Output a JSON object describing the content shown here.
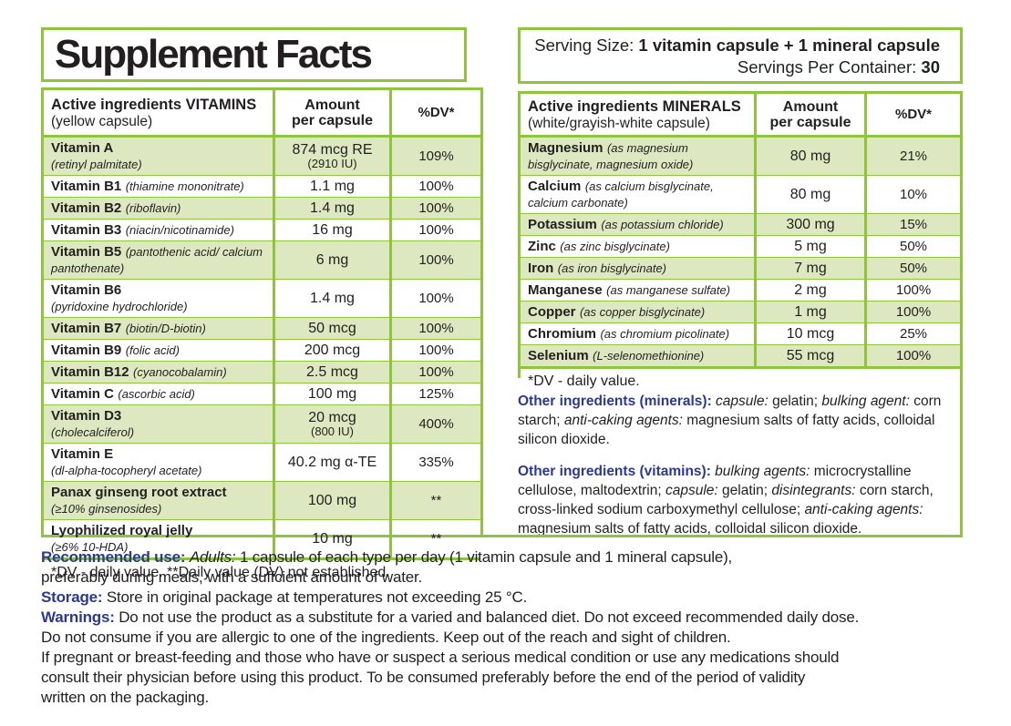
{
  "colors": {
    "border_green": "#8FC43F",
    "row_shade_green": "#DEE8C0",
    "heading_blue": "#2B3990",
    "text": "#221F1F"
  },
  "label": {
    "title": "Supplement Facts",
    "serving": {
      "line1": [
        {
          "t": "Serving Size: ",
          "s": "n"
        },
        {
          "t": "1 vitamin capsule + 1 mineral capsule",
          "s": "b"
        }
      ],
      "line2": [
        {
          "t": "Servings Per Container: ",
          "s": "n"
        },
        {
          "t": "30",
          "s": "b"
        }
      ]
    },
    "vitamins": {
      "header": {
        "title": "Active ingredients VITAMINS",
        "subtitle": "(yellow capsule)",
        "amount_line1": "Amount",
        "amount_line2": "per capsule",
        "dv": "%DV*"
      },
      "rows": [
        {
          "name": "Vitamin A",
          "chem": "(retinyl palmitate)",
          "br": true,
          "amount": "874 mcg RE",
          "amount2": "(2910 IU)",
          "dv": "109%"
        },
        {
          "name": "Vitamin B1",
          "chem": "(thiamine mononitrate)",
          "amount": "1.1 mg",
          "dv": "100%"
        },
        {
          "name": "Vitamin B2",
          "chem": "(riboflavin)",
          "amount": "1.4 mg",
          "dv": "100%"
        },
        {
          "name": "Vitamin B3",
          "chem": "(niacin/nicotinamide)",
          "amount": "16 mg",
          "dv": "100%"
        },
        {
          "name": "Vitamin B5",
          "chem": "(pantothenic acid/ calcium pantothenate)",
          "amount": "6 mg",
          "dv": "100%"
        },
        {
          "name": "Vitamin B6",
          "chem": "(pyridoxine hydrochloride)",
          "br": true,
          "amount": "1.4 mg",
          "dv": "100%"
        },
        {
          "name": "Vitamin B7",
          "chem": "(biotin/D-biotin)",
          "amount": "50 mcg",
          "dv": "100%"
        },
        {
          "name": "Vitamin B9",
          "chem": "(folic acid)",
          "amount": "200 mcg",
          "dv": "100%"
        },
        {
          "name": "Vitamin B12",
          "chem": "(cyanocobalamin)",
          "amount": "2.5 mcg",
          "dv": "100%"
        },
        {
          "name": "Vitamin C",
          "chem": "(ascorbic acid)",
          "amount": "100 mg",
          "dv": "125%"
        },
        {
          "name": "Vitamin D3",
          "chem": "(cholecalciferol)",
          "br": true,
          "amount": "20 mcg",
          "amount2": "(800 IU)",
          "dv": "400%"
        },
        {
          "name": "Vitamin E",
          "chem": "(dl-alpha-tocopheryl acetate)",
          "br": true,
          "amount": "40.2 mg α-TE",
          "dv": "335%"
        },
        {
          "name": "Panax ginseng root extract",
          "chem": "(≥10% ginsenosides)",
          "br": true,
          "amount": "100 mg",
          "dv": "**"
        },
        {
          "name": "Lyophilized royal jelly",
          "chem": "(≥6% 10-HDA)",
          "br": true,
          "amount": "10 mg",
          "dv": "**"
        }
      ],
      "footnote": "*DV - daily value.  **Daily value (DV) not established."
    },
    "minerals": {
      "header": {
        "title": "Active ingredients MINERALS",
        "subtitle": "(white/grayish-white capsule)",
        "amount_line1": "Amount",
        "amount_line2": "per capsule",
        "dv": "%DV*"
      },
      "rows": [
        {
          "name": "Magnesium",
          "chem": "(as magnesium bisglycinate, magnesium oxide)",
          "amount": "80 mg",
          "dv": "21%"
        },
        {
          "name": "Calcium",
          "chem": "(as calcium bisglycinate, calcium carbonate)",
          "amount": "80 mg",
          "dv": "10%"
        },
        {
          "name": "Potassium",
          "chem": "(as potassium chloride)",
          "amount": "300 mg",
          "dv": "15%"
        },
        {
          "name": "Zinc",
          "chem": "(as zinc bisglycinate)",
          "amount": "5 mg",
          "dv": "50%"
        },
        {
          "name": "Iron",
          "chem": "(as iron bisglycinate)",
          "amount": "7 mg",
          "dv": "50%"
        },
        {
          "name": "Manganese",
          "chem": "(as manganese sulfate)",
          "amount": "2 mg",
          "dv": "100%"
        },
        {
          "name": "Copper",
          "chem": "(as copper bisglycinate)",
          "amount": "1 mg",
          "dv": "100%"
        },
        {
          "name": "Chromium",
          "chem": "(as chromium picolinate)",
          "amount": "10 mcg",
          "dv": "25%"
        },
        {
          "name": "Selenium",
          "chem": "(L-selenomethionine)",
          "amount": "55 mcg",
          "dv": "100%"
        }
      ],
      "footnote": "*DV - daily value."
    },
    "other_ingredients_minerals": [
      {
        "t": "Other ingredients (minerals): ",
        "s": "bb"
      },
      {
        "t": "capsule: ",
        "s": "i"
      },
      {
        "t": "gelatin; ",
        "s": "n"
      },
      {
        "t": "bulking agent: ",
        "s": "i"
      },
      {
        "t": "corn starch; ",
        "s": "n"
      },
      {
        "t": "anti-caking agents: ",
        "s": "i"
      },
      {
        "t": "magnesium salts of fatty acids, colloidal silicon dioxide.",
        "s": "n"
      }
    ],
    "other_ingredients_vitamins": [
      {
        "t": "Other ingredients (vitamins): ",
        "s": "bb"
      },
      {
        "t": "bulking agents: ",
        "s": "i"
      },
      {
        "t": "microcrystalline cellulose, maltodextrin; ",
        "s": "n"
      },
      {
        "t": "capsule: ",
        "s": "i"
      },
      {
        "t": "gelatin; ",
        "s": "n"
      },
      {
        "t": "disintegrants: ",
        "s": "i"
      },
      {
        "t": "corn starch, cross-linked sodium carboxymethyl cellulose; ",
        "s": "n"
      },
      {
        "t": "anti-caking agents: ",
        "s": "i"
      },
      {
        "t": "magnesium salts of fatty acids, colloidal silicon dioxide.",
        "s": "n"
      }
    ]
  },
  "footer": {
    "lines": [
      [
        {
          "t": "Recommended use: ",
          "s": "bb"
        },
        {
          "t": "Adults: ",
          "s": "i"
        },
        {
          "t": "1 capsule of each type per day (1 vitamin capsule and 1 mineral capsule),",
          "s": "n"
        }
      ],
      [
        {
          "t": "preferably during meals, with a suffcient amount of water.",
          "s": "n"
        }
      ],
      [
        {
          "t": "Storage: ",
          "s": "bb"
        },
        {
          "t": "Store in original package at temperatures not exceeding 25 °C.",
          "s": "n"
        }
      ],
      [
        {
          "t": "Warnings: ",
          "s": "bb"
        },
        {
          "t": "Do not use the product as a substitute for a varied and balanced diet. Do not exceed recommended daily dose.",
          "s": "n"
        }
      ],
      [
        {
          "t": "Do not consume if you are allergic to one of the ingredients. Keep out of the reach and sight of children.",
          "s": "n"
        }
      ],
      [
        {
          "t": "If pregnant or breast-feeding and those who have or suspect a serious medical condition or use any medications should",
          "s": "n"
        }
      ],
      [
        {
          "t": "consult their physician before using this product. To be consumed preferably before the end of the period of validity",
          "s": "n"
        }
      ],
      [
        {
          "t": "written on the packaging.",
          "s": "n"
        }
      ]
    ]
  }
}
